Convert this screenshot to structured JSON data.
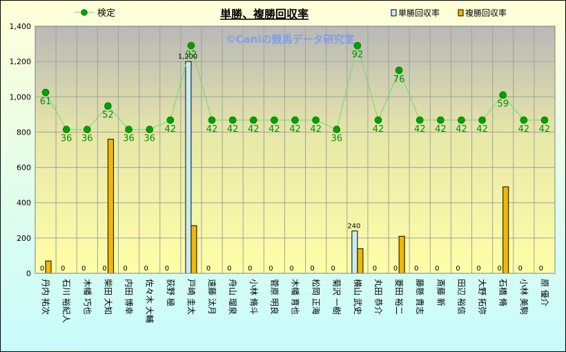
{
  "chart_data": {
    "type": "bar",
    "title": "単勝、複勝回収率",
    "watermark": "©Caniの競馬データ研究室",
    "categories": [
      "丹内 祐次",
      "石川 裕紀人",
      "木幡 巧也",
      "柴田 大知",
      "内田 博幸",
      "佐々木 大輔",
      "荻野 極",
      "戸崎 圭太",
      "遠藤 汰月",
      "舟山 瑠泉",
      "小林 脩斗",
      "菅原 明良",
      "木幡 育也",
      "松岡 正海",
      "菊沢 一樹",
      "横山 武史",
      "丸田 恭介",
      "菱田 裕二",
      "藤懸 貴志",
      "斎藤 新",
      "田辺 裕信",
      "大野 拓弥",
      "石橋 脩",
      "小林 美駒",
      "原 優介"
    ],
    "series": [
      {
        "name": "単勝回収率",
        "values": [
          0,
          0,
          0,
          0,
          0,
          0,
          0,
          1200,
          0,
          0,
          0,
          0,
          0,
          0,
          0,
          240,
          0,
          0,
          0,
          0,
          0,
          0,
          0,
          0,
          0
        ],
        "color": "#C8ECF4"
      },
      {
        "name": "複勝回収率",
        "values": [
          70,
          0,
          0,
          760,
          0,
          0,
          0,
          270,
          0,
          0,
          0,
          0,
          0,
          0,
          0,
          140,
          0,
          210,
          0,
          0,
          0,
          0,
          490,
          0,
          0
        ],
        "color": "#F2B800"
      },
      {
        "name": "検定",
        "values": [
          61,
          36,
          36,
          52,
          36,
          36,
          42,
          92,
          42,
          42,
          42,
          42,
          42,
          42,
          36,
          92,
          42,
          76,
          42,
          42,
          42,
          42,
          59,
          42,
          42
        ],
        "plotted": [
          1025,
          815,
          815,
          948,
          815,
          815,
          868,
          1290,
          868,
          868,
          868,
          868,
          868,
          868,
          815,
          1290,
          868,
          1150,
          868,
          868,
          868,
          868,
          1010,
          868,
          868
        ],
        "color": "#00A000"
      }
    ],
    "bar_labels": {
      "単勝回収率": [
        "0",
        "0",
        "0",
        "0",
        "0",
        "0",
        "0",
        "1,200",
        "0",
        "0",
        "0",
        "0",
        "0",
        "0",
        "0",
        "240",
        "0",
        "0",
        "0",
        "0",
        "0",
        "0",
        "0",
        "0",
        "0"
      ]
    },
    "ylim": [
      0,
      1400
    ],
    "yticks": [
      "0",
      "200",
      "400",
      "600",
      "800",
      "1,000",
      "1,200",
      "1,400"
    ],
    "grid": true,
    "legend": "top"
  }
}
